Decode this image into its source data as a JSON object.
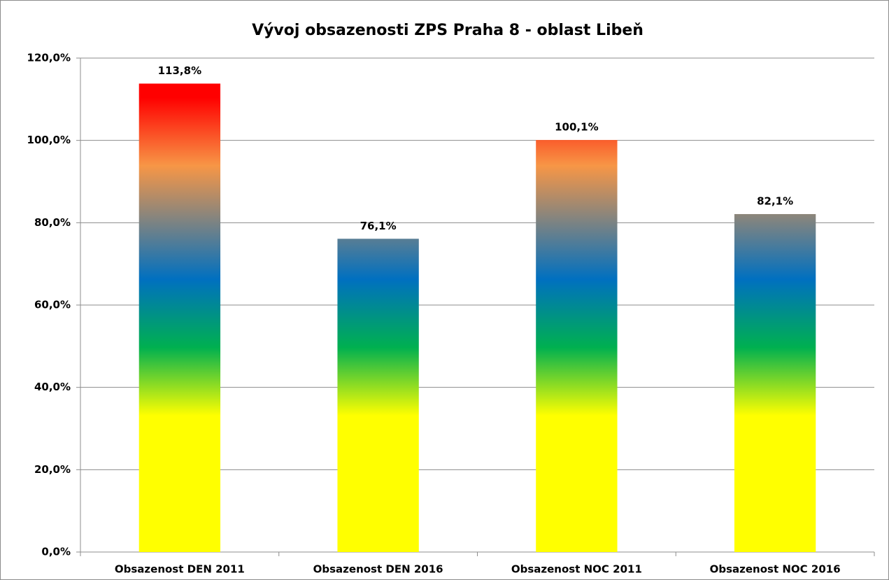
{
  "chart_data": {
    "type": "bar",
    "title": "Vývoj obsazenosti ZPS Praha 8 - oblast Libeň",
    "categories": [
      "Obsazenost DEN 2011",
      "Obsazenost DEN 2016",
      "Obsazenost NOC 2011",
      "Obsazenost NOC 2016"
    ],
    "values": [
      113.8,
      76.1,
      100.1,
      82.1
    ],
    "value_labels": [
      "113,8%",
      "76,1%",
      "100,1%",
      "82,1%"
    ],
    "colors": [
      "#ffff00",
      "#00b050",
      "#0070c0",
      "#f79646",
      "#ff0000"
    ],
    "ylim": [
      0,
      120
    ],
    "yticks": [
      {
        "value": 0,
        "label": "0,0%"
      },
      {
        "value": 20,
        "label": "20,0%"
      },
      {
        "value": 40,
        "label": "40,0%"
      },
      {
        "value": 60,
        "label": "60,0%"
      },
      {
        "value": 80,
        "label": "80,0%"
      },
      {
        "value": 100,
        "label": "100,0%"
      },
      {
        "value": 120,
        "label": "120,0%"
      }
    ],
    "grid": true
  }
}
